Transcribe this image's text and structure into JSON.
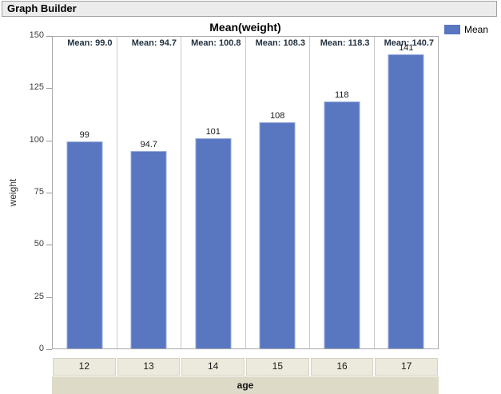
{
  "window": {
    "title": "Graph Builder"
  },
  "colors": {
    "bar_fill": "#5977C1",
    "bar_border": "#97A9DA",
    "caption_text": "#223240",
    "category_box_bg": "#ECE9DD",
    "axis_strip_bg": "#DEDAC8",
    "titlebar_bg": "#ECECEC"
  },
  "chart_data": {
    "type": "bar",
    "title": "Mean(weight)",
    "xlabel": "age",
    "ylabel": "weight",
    "ylim": [
      0,
      150
    ],
    "yticks": [
      "0",
      "25",
      "50",
      "75",
      "100",
      "125",
      "150"
    ],
    "grid": false,
    "categories": [
      "12",
      "13",
      "14",
      "15",
      "16",
      "17"
    ],
    "series": [
      {
        "name": "Mean",
        "values": [
          99,
          94.7,
          100.8,
          108.3,
          118.3,
          140.7
        ]
      }
    ],
    "bar_labels": [
      "99",
      "94.7",
      "101",
      "108",
      "118",
      "141"
    ],
    "panel_captions": [
      "Mean: 99.0",
      "Mean: 94.7",
      "Mean: 100.8",
      "Mean: 108.3",
      "Mean: 118.3",
      "Mean: 140.7"
    ],
    "legend": {
      "position": "top-right",
      "entries": [
        {
          "label": "Mean",
          "color": "#5977C1"
        }
      ]
    }
  }
}
